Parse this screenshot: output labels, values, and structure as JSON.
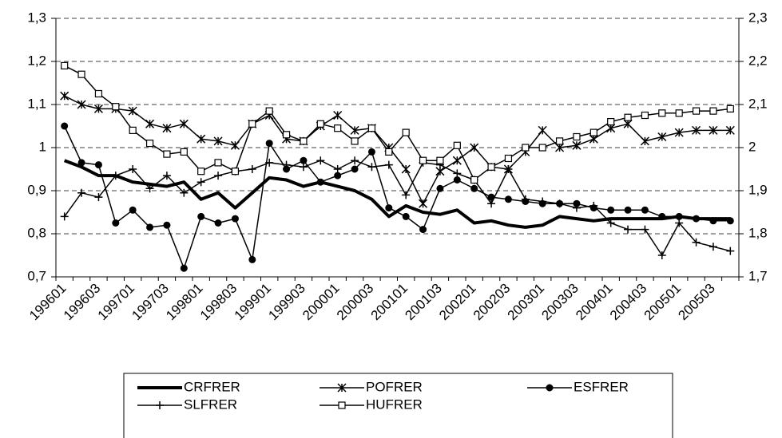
{
  "chart_data": {
    "type": "line",
    "categories": [
      "199601",
      null,
      "199603",
      null,
      "199701",
      null,
      "199703",
      null,
      "199801",
      null,
      "199803",
      null,
      "199901",
      null,
      "199903",
      null,
      "200001",
      null,
      "200003",
      null,
      "200101",
      null,
      "200103",
      null,
      "200201",
      null,
      "200203",
      null,
      "200301",
      null,
      "200303",
      null,
      "200401",
      null,
      "200403",
      null,
      "200501",
      null,
      "200503",
      null
    ],
    "ylim": [
      0.7,
      1.3
    ],
    "yticks": [
      {
        "value": 0.7,
        "label": "0,7"
      },
      {
        "value": 0.8,
        "label": "0,8"
      },
      {
        "value": 0.9,
        "label": "0,9"
      },
      1,
      {
        "value": 1.1,
        "label": "1,1"
      },
      {
        "value": 1.2,
        "label": "1,2"
      },
      {
        "value": 1.3,
        "label": "1,3"
      }
    ],
    "y2lim": [
      1.7,
      2.3
    ],
    "y2ticks": [
      {
        "value": 1.7,
        "label": "1,7"
      },
      {
        "value": 1.8,
        "label": "1,8"
      },
      {
        "value": 1.9,
        "label": "1,9"
      },
      2,
      {
        "value": 2.1,
        "label": "2,1"
      },
      {
        "value": 2.2,
        "label": "2,2"
      },
      {
        "value": 2.3,
        "label": "2,3"
      }
    ],
    "grid": true,
    "series": [
      {
        "name": "CRFRER",
        "color": "#000000",
        "marker": "none",
        "line_width": 4,
        "values": [
          0.97,
          0.955,
          0.935,
          0.935,
          0.92,
          0.915,
          0.91,
          0.92,
          0.88,
          0.895,
          0.86,
          0.895,
          0.93,
          0.925,
          0.91,
          0.92,
          0.91,
          0.9,
          0.88,
          0.84,
          0.865,
          0.85,
          0.845,
          0.855,
          0.825,
          0.83,
          0.82,
          0.815,
          0.82,
          0.84,
          0.835,
          0.83,
          0.835,
          0.835,
          0.835,
          0.835,
          0.84,
          0.835,
          0.835,
          0.835
        ]
      },
      {
        "name": "POFRER",
        "color": "#000000",
        "marker": "asterisk",
        "line_width": 1.5,
        "values": [
          1.12,
          1.1,
          1.09,
          1.09,
          1.085,
          1.055,
          1.045,
          1.055,
          1.02,
          1.015,
          1.005,
          1.055,
          1.075,
          1.02,
          1.015,
          1.05,
          1.075,
          1.04,
          1.045,
          1.0,
          0.95,
          0.87,
          0.945,
          0.97,
          1.0,
          0.955,
          0.95,
          0.99,
          1.04,
          1.0,
          1.005,
          1.02,
          1.045,
          1.055,
          1.015,
          1.025,
          1.035,
          1.04,
          1.04,
          1.04
        ]
      },
      {
        "name": "ESFRER",
        "color": "#000000",
        "marker": "circle",
        "line_width": 1.5,
        "values": [
          1.05,
          0.965,
          0.96,
          0.825,
          0.855,
          0.815,
          0.82,
          0.72,
          0.84,
          0.825,
          0.835,
          0.74,
          1.01,
          0.95,
          0.97,
          0.92,
          0.935,
          0.95,
          0.99,
          0.86,
          0.84,
          0.81,
          0.905,
          0.925,
          0.905,
          0.885,
          0.88,
          0.875,
          0.87,
          0.87,
          0.87,
          0.86,
          0.855,
          0.855,
          0.855,
          0.84,
          0.84,
          0.835,
          0.83,
          0.83
        ]
      },
      {
        "name": "SLFRER",
        "color": "#000000",
        "marker": "plus",
        "line_width": 1.5,
        "values": [
          0.84,
          0.895,
          0.885,
          0.935,
          0.95,
          0.905,
          0.935,
          0.895,
          0.92,
          0.935,
          0.945,
          0.95,
          0.965,
          0.96,
          0.955,
          0.97,
          0.95,
          0.97,
          0.955,
          0.96,
          0.89,
          0.965,
          0.96,
          0.94,
          0.925,
          0.87,
          0.95,
          0.88,
          0.875,
          0.87,
          0.86,
          0.865,
          0.825,
          0.81,
          0.81,
          0.75,
          0.825,
          0.78,
          0.77,
          0.76
        ]
      },
      {
        "name": "HUFRER",
        "color": "#000000",
        "marker": "square",
        "line_width": 1.5,
        "values": [
          1.19,
          1.17,
          1.125,
          1.095,
          1.04,
          1.01,
          0.985,
          0.99,
          0.945,
          0.965,
          0.945,
          1.055,
          1.085,
          1.03,
          1.015,
          1.055,
          1.045,
          1.015,
          1.045,
          0.99,
          1.035,
          0.97,
          0.97,
          1.005,
          0.925,
          0.955,
          0.975,
          1.0,
          1.0,
          1.015,
          1.025,
          1.035,
          1.06,
          1.07,
          1.075,
          1.08,
          1.08,
          1.085,
          1.085,
          1.09
        ]
      }
    ]
  }
}
